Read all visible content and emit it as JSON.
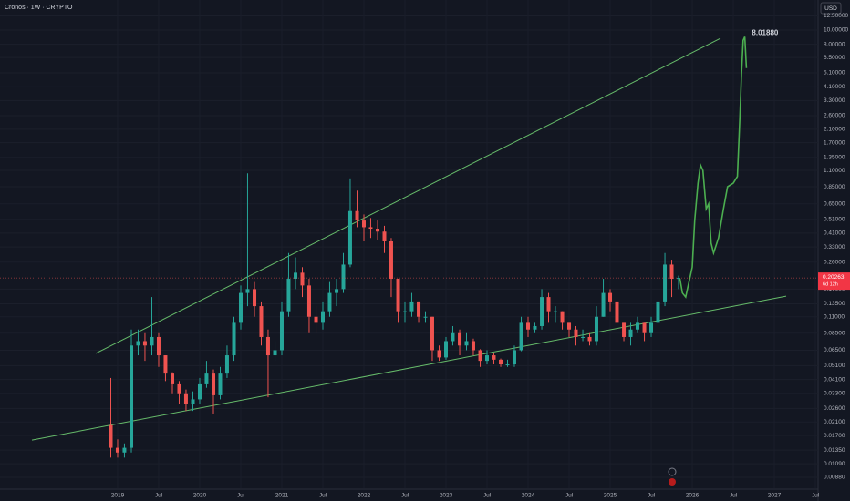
{
  "chart_data": {
    "type": "candlestick",
    "title": "Cronos · 1W · CRYPTO",
    "currency": "USD",
    "log_scale": true,
    "grid": true,
    "up_color": "#26a69a",
    "down_color": "#ef5350",
    "xlim": [
      2017.567,
      2027.533
    ],
    "ylim": [
      0.00741,
      16.05
    ],
    "xticks": [
      2019,
      {
        "value": 2019.5,
        "label": "Jul"
      },
      2020,
      {
        "value": 2020.5,
        "label": "Jul"
      },
      2021,
      {
        "value": 2021.5,
        "label": "Jul"
      },
      2022,
      {
        "value": 2022.5,
        "label": "Jul"
      },
      2023,
      {
        "value": 2023.5,
        "label": "Jul"
      },
      2024,
      {
        "value": 2024.5,
        "label": "Jul"
      },
      2025,
      {
        "value": 2025.5,
        "label": "Jul"
      },
      2026,
      {
        "value": 2026.5,
        "label": "Jul"
      },
      2027,
      {
        "value": 2027.5,
        "label": "Jul"
      }
    ],
    "yticks": [
      {
        "value": 12.5,
        "label": "12.50000"
      },
      {
        "value": 10,
        "label": "10.00000"
      },
      {
        "value": 8,
        "label": "8.00000"
      },
      {
        "value": 6.5,
        "label": "6.50000"
      },
      {
        "value": 5.1,
        "label": "5.10000"
      },
      {
        "value": 4.1,
        "label": "4.10000"
      },
      {
        "value": 3.3,
        "label": "3.30000"
      },
      {
        "value": 2.6,
        "label": "2.60000"
      },
      {
        "value": 2.1,
        "label": "2.10000"
      },
      {
        "value": 1.7,
        "label": "1.70000"
      },
      {
        "value": 1.35,
        "label": "1.35000"
      },
      {
        "value": 1.1,
        "label": "1.10000"
      },
      {
        "value": 0.85,
        "label": "0.85000"
      },
      {
        "value": 0.65,
        "label": "0.65000"
      },
      {
        "value": 0.51,
        "label": "0.51000"
      },
      {
        "value": 0.41,
        "label": "0.41000"
      },
      {
        "value": 0.33,
        "label": "0.33000"
      },
      {
        "value": 0.26,
        "label": "0.26000"
      },
      {
        "value": 0.17,
        "label": "0.17000"
      },
      {
        "value": 0.135,
        "label": "0.13500"
      },
      {
        "value": 0.11,
        "label": "0.11000"
      },
      {
        "value": 0.085,
        "label": "0.08500"
      },
      {
        "value": 0.065,
        "label": "0.06500"
      },
      {
        "value": 0.051,
        "label": "0.05100"
      },
      {
        "value": 0.041,
        "label": "0.04100"
      },
      {
        "value": 0.033,
        "label": "0.03300"
      },
      {
        "value": 0.026,
        "label": "0.02600"
      },
      {
        "value": 0.021,
        "label": "0.02100"
      },
      {
        "value": 0.017,
        "label": "0.01700"
      },
      {
        "value": 0.0135,
        "label": "0.01350"
      },
      {
        "value": 0.0109,
        "label": "0.01090"
      },
      {
        "value": 0.0088,
        "label": "0.00880"
      }
    ],
    "x": [
      2018.917,
      2019.0,
      2019.083,
      2019.167,
      2019.25,
      2019.333,
      2019.417,
      2019.5,
      2019.583,
      2019.667,
      2019.75,
      2019.833,
      2019.917,
      2020.0,
      2020.083,
      2020.167,
      2020.25,
      2020.333,
      2020.417,
      2020.5,
      2020.583,
      2020.667,
      2020.75,
      2020.833,
      2020.917,
      2021.0,
      2021.083,
      2021.167,
      2021.25,
      2021.333,
      2021.417,
      2021.5,
      2021.583,
      2021.667,
      2021.75,
      2021.833,
      2021.917,
      2022.0,
      2022.083,
      2022.167,
      2022.25,
      2022.333,
      2022.417,
      2022.5,
      2022.583,
      2022.667,
      2022.75,
      2022.833,
      2022.917,
      2023.0,
      2023.083,
      2023.167,
      2023.25,
      2023.333,
      2023.417,
      2023.5,
      2023.583,
      2023.667,
      2023.75,
      2023.833,
      2023.917,
      2024.0,
      2024.083,
      2024.167,
      2024.25,
      2024.333,
      2024.417,
      2024.5,
      2024.583,
      2024.667,
      2024.75,
      2024.833,
      2024.917,
      2025.0,
      2025.083,
      2025.167,
      2025.25,
      2025.333,
      2025.417,
      2025.5,
      2025.583,
      2025.667,
      2025.75,
      2025.833
    ],
    "open": [
      0.02,
      0.014,
      0.013,
      0.014,
      0.07,
      0.075,
      0.07,
      0.08,
      0.06,
      0.045,
      0.038,
      0.033,
      0.028,
      0.03,
      0.038,
      0.045,
      0.032,
      0.045,
      0.06,
      0.1,
      0.16,
      0.17,
      0.13,
      0.08,
      0.06,
      0.065,
      0.12,
      0.2,
      0.22,
      0.18,
      0.11,
      0.1,
      0.12,
      0.16,
      0.17,
      0.25,
      0.58,
      0.5,
      0.45,
      0.44,
      0.42,
      0.36,
      0.2,
      0.12,
      0.12,
      0.14,
      0.11,
      0.11,
      0.065,
      0.058,
      0.075,
      0.085,
      0.07,
      0.075,
      0.065,
      0.055,
      0.06,
      0.056,
      0.052,
      0.052,
      0.065,
      0.1,
      0.09,
      0.095,
      0.15,
      0.12,
      0.12,
      0.1,
      0.09,
      0.08,
      0.08,
      0.075,
      0.11,
      0.16,
      0.14,
      0.1,
      0.08,
      0.09,
      0.1,
      0.085,
      0.1,
      0.14,
      0.25,
      0.2
    ],
    "high": [
      0.042,
      0.016,
      0.015,
      0.09,
      0.09,
      0.085,
      0.15,
      0.085,
      0.06,
      0.046,
      0.04,
      0.035,
      0.034,
      0.042,
      0.055,
      0.048,
      0.05,
      0.07,
      0.11,
      0.18,
      1.05,
      0.19,
      0.14,
      0.09,
      0.075,
      0.14,
      0.3,
      0.28,
      0.24,
      0.2,
      0.13,
      0.14,
      0.19,
      0.2,
      0.3,
      0.97,
      0.8,
      0.55,
      0.52,
      0.5,
      0.46,
      0.38,
      0.2,
      0.14,
      0.16,
      0.14,
      0.12,
      0.11,
      0.07,
      0.08,
      0.095,
      0.09,
      0.085,
      0.078,
      0.066,
      0.065,
      0.062,
      0.057,
      0.056,
      0.07,
      0.11,
      0.11,
      0.1,
      0.17,
      0.16,
      0.13,
      0.12,
      0.1,
      0.095,
      0.09,
      0.085,
      0.13,
      0.2,
      0.17,
      0.14,
      0.1,
      0.1,
      0.11,
      0.1,
      0.11,
      0.38,
      0.3,
      0.27,
      0.21
    ],
    "low": [
      0.012,
      0.012,
      0.012,
      0.013,
      0.06,
      0.055,
      0.06,
      0.05,
      0.04,
      0.033,
      0.028,
      0.025,
      0.025,
      0.028,
      0.036,
      0.024,
      0.03,
      0.042,
      0.055,
      0.09,
      0.13,
      0.11,
      0.07,
      0.031,
      0.055,
      0.06,
      0.11,
      0.17,
      0.15,
      0.085,
      0.085,
      0.09,
      0.11,
      0.13,
      0.16,
      0.24,
      0.45,
      0.36,
      0.38,
      0.37,
      0.3,
      0.15,
      0.1,
      0.1,
      0.11,
      0.1,
      0.1,
      0.055,
      0.055,
      0.056,
      0.07,
      0.06,
      0.065,
      0.06,
      0.05,
      0.052,
      0.052,
      0.05,
      0.05,
      0.05,
      0.064,
      0.08,
      0.085,
      0.09,
      0.1,
      0.1,
      0.09,
      0.08,
      0.07,
      0.075,
      0.07,
      0.07,
      0.11,
      0.12,
      0.09,
      0.075,
      0.07,
      0.085,
      0.075,
      0.08,
      0.095,
      0.13,
      0.15,
      0.17
    ],
    "close": [
      0.014,
      0.013,
      0.014,
      0.07,
      0.075,
      0.07,
      0.08,
      0.06,
      0.045,
      0.038,
      0.033,
      0.028,
      0.03,
      0.038,
      0.045,
      0.032,
      0.045,
      0.06,
      0.1,
      0.16,
      0.17,
      0.13,
      0.08,
      0.06,
      0.065,
      0.12,
      0.2,
      0.22,
      0.18,
      0.11,
      0.1,
      0.12,
      0.16,
      0.17,
      0.25,
      0.58,
      0.5,
      0.45,
      0.44,
      0.42,
      0.36,
      0.2,
      0.12,
      0.12,
      0.14,
      0.11,
      0.11,
      0.065,
      0.058,
      0.075,
      0.085,
      0.07,
      0.075,
      0.065,
      0.055,
      0.06,
      0.056,
      0.052,
      0.052,
      0.065,
      0.1,
      0.09,
      0.095,
      0.15,
      0.12,
      0.12,
      0.1,
      0.09,
      0.08,
      0.08,
      0.075,
      0.11,
      0.16,
      0.14,
      0.1,
      0.08,
      0.09,
      0.1,
      0.085,
      0.1,
      0.14,
      0.25,
      0.2,
      0.2026
    ],
    "projection": {
      "color": "#4caf50",
      "x": [
        2025.85,
        2025.88,
        2025.92,
        2026.0,
        2026.03,
        2026.07,
        2026.1,
        2026.13,
        2026.17,
        2026.2,
        2026.23,
        2026.26,
        2026.32,
        2026.38,
        2026.43,
        2026.5,
        2026.55,
        2026.58,
        2026.6,
        2026.62,
        2026.64,
        2026.66
      ],
      "values": [
        0.2,
        0.16,
        0.15,
        0.24,
        0.5,
        0.9,
        1.2,
        1.1,
        0.6,
        0.65,
        0.35,
        0.3,
        0.38,
        0.6,
        0.85,
        0.9,
        1.0,
        2.5,
        5.0,
        8.5,
        9.0,
        5.5
      ]
    },
    "trendlines": [
      {
        "color": "#66bb6a",
        "x": [
          2018.733,
          2026.344
        ],
        "values": [
          0.0618,
          8.79
        ]
      },
      {
        "color": "#66bb6a",
        "x": [
          2017.956,
          2027.144
        ],
        "values": [
          0.0158,
          0.152
        ]
      }
    ],
    "peak_label": {
      "value": 8.0188,
      "label": "8.01880"
    },
    "last_price": {
      "value": 0.20263,
      "label": "0.20263"
    },
    "countdown": "6d 12h"
  }
}
